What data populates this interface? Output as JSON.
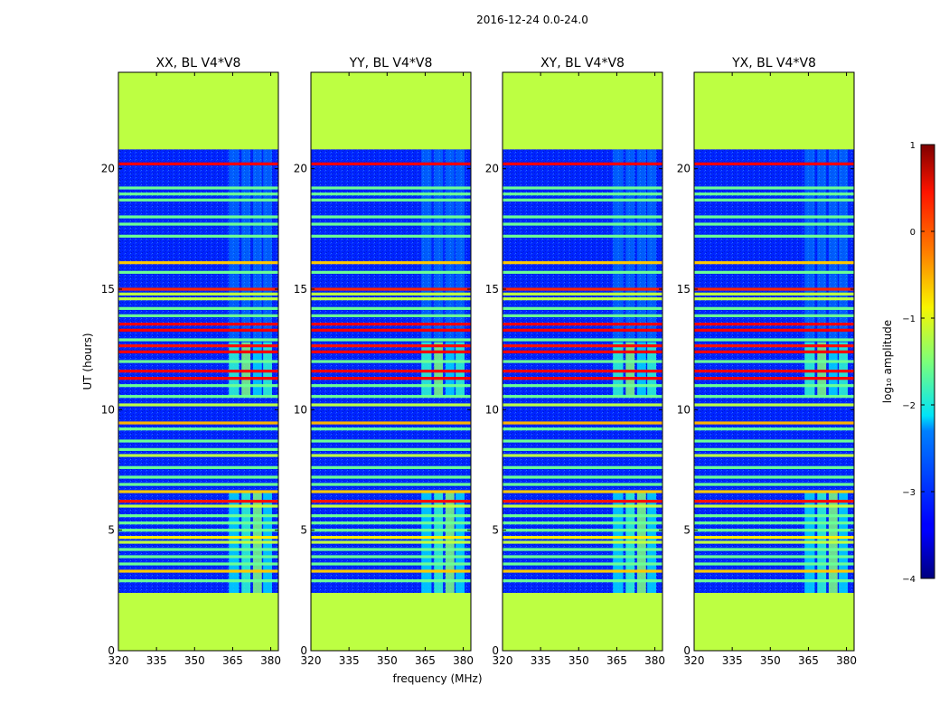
{
  "figure": {
    "suptitle": "2016-12-24 0.0-24.0",
    "ylabel": "UT (hours)",
    "xlabel": "frequency (MHz)"
  },
  "chart_data": {
    "type": "heatmap",
    "subplot_titles": [
      "XX, BL V4*V8",
      "YY, BL V4*V8",
      "XY, BL V4*V8",
      "YX, BL V4*V8"
    ],
    "x": {
      "label": "frequency (MHz)",
      "range": [
        320,
        383
      ],
      "ticks": [
        320,
        335,
        350,
        365,
        380
      ]
    },
    "y": {
      "label": "UT (hours)",
      "range": [
        0,
        24
      ],
      "ticks": [
        0,
        5,
        10,
        15,
        20
      ]
    },
    "colorbar": {
      "label": "log₁₀ amplitude",
      "range": [
        -4,
        1
      ],
      "ticks": [
        1,
        0,
        -1,
        -2,
        -3,
        -4
      ],
      "tick_labels": [
        "1",
        "0",
        "−1",
        "−2",
        "−3",
        "−4"
      ],
      "colormap": "jet"
    },
    "masked_value": -1.2,
    "no_data_ranges_hours": [
      [
        0,
        2.4
      ],
      [
        20.8,
        24
      ]
    ],
    "background_value": -3.2,
    "rfi_band_mhz": [
      363,
      381
    ],
    "rfi_band_columns_mhz": [
      [
        363.5,
        367.5
      ],
      [
        368.5,
        372
      ],
      [
        373,
        376.5
      ],
      [
        377,
        380.5
      ]
    ],
    "rfi_band_value_range": [
      -2.3,
      -1.5
    ],
    "rfi_active_hours": [
      [
        2.4,
        6.6
      ],
      [
        10.5,
        12.8
      ]
    ],
    "flagged_rows": [
      {
        "t": 20.2,
        "v": 0.4
      },
      {
        "t": 19.2,
        "v": -1.6
      },
      {
        "t": 18.95,
        "v": -1.6
      },
      {
        "t": 18.7,
        "v": -1.6
      },
      {
        "t": 18.0,
        "v": -1.6
      },
      {
        "t": 17.7,
        "v": -1.6
      },
      {
        "t": 17.2,
        "v": -1.6
      },
      {
        "t": 16.1,
        "v": -0.6
      },
      {
        "t": 15.7,
        "v": -1.6
      },
      {
        "t": 15.0,
        "v": 0.2
      },
      {
        "t": 14.8,
        "v": -1.2
      },
      {
        "t": 14.6,
        "v": -1.2
      },
      {
        "t": 14.2,
        "v": -1.6
      },
      {
        "t": 13.9,
        "v": -1.6
      },
      {
        "t": 13.55,
        "v": 0.4
      },
      {
        "t": 13.3,
        "v": 0.4
      },
      {
        "t": 12.9,
        "v": -1.6
      },
      {
        "t": 12.65,
        "v": 0.3
      },
      {
        "t": 12.4,
        "v": 0.4
      },
      {
        "t": 12.0,
        "v": -1.6
      },
      {
        "t": 11.6,
        "v": 0.4
      },
      {
        "t": 11.3,
        "v": 0.4
      },
      {
        "t": 11.0,
        "v": -1.6
      },
      {
        "t": 10.55,
        "v": -1.6
      },
      {
        "t": 10.2,
        "v": -1.2
      },
      {
        "t": 9.45,
        "v": -0.5
      },
      {
        "t": 9.2,
        "v": -1.6
      },
      {
        "t": 8.7,
        "v": -1.6
      },
      {
        "t": 8.35,
        "v": -1.6
      },
      {
        "t": 8.1,
        "v": -1.2
      },
      {
        "t": 7.6,
        "v": -1.6
      },
      {
        "t": 7.2,
        "v": -1.6
      },
      {
        "t": 6.9,
        "v": -1.6
      },
      {
        "t": 6.6,
        "v": -0.6
      },
      {
        "t": 6.2,
        "v": 0.3
      },
      {
        "t": 6.0,
        "v": -1.2
      },
      {
        "t": 5.6,
        "v": -1.6
      },
      {
        "t": 5.3,
        "v": -1.6
      },
      {
        "t": 5.0,
        "v": -1.6
      },
      {
        "t": 4.7,
        "v": -0.8
      },
      {
        "t": 4.5,
        "v": -1.2
      },
      {
        "t": 4.2,
        "v": -1.6
      },
      {
        "t": 3.9,
        "v": -1.6
      },
      {
        "t": 3.6,
        "v": -1.6
      },
      {
        "t": 3.3,
        "v": -0.6
      },
      {
        "t": 2.9,
        "v": -1.6
      }
    ]
  }
}
